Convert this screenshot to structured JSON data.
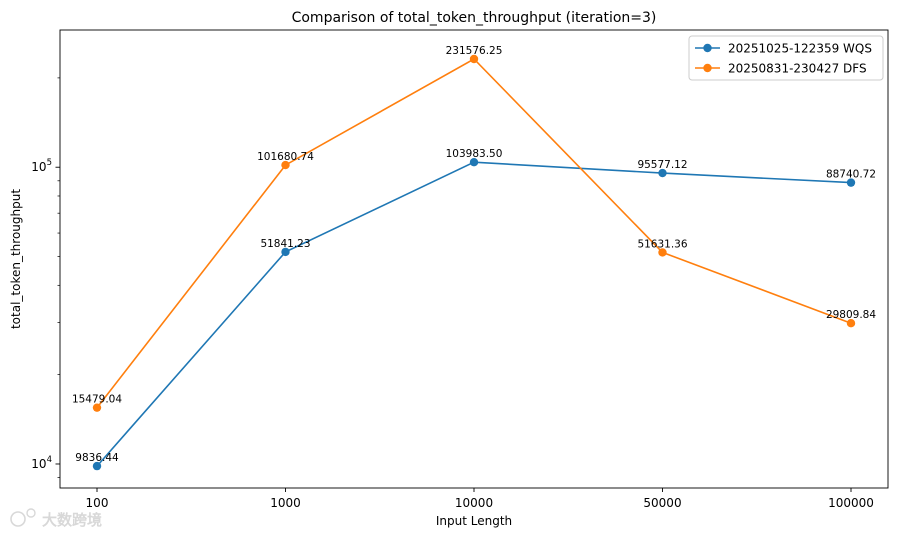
{
  "chart_data": {
    "type": "line",
    "title": "Comparison of total_token_throughput (iteration=3)",
    "xlabel": "Input Length",
    "ylabel": "total_token_throughput",
    "yscale": "log",
    "ylim": [
      8300,
      290000
    ],
    "categories": [
      "100",
      "1000",
      "10000",
      "50000",
      "100000"
    ],
    "y_ticks": [
      {
        "value": 10000,
        "base": "10",
        "exp": "4"
      },
      {
        "value": 100000,
        "base": "10",
        "exp": "5"
      }
    ],
    "grid": false,
    "legend_position": "top-right",
    "series": [
      {
        "name": "20251025-122359 WQS",
        "color": "#1f77b4",
        "values": [
          9836.44,
          51841.23,
          103983.5,
          95577.12,
          88740.72
        ],
        "labels": [
          "9836.44",
          "51841.23",
          "103983.50",
          "95577.12",
          "88740.72"
        ]
      },
      {
        "name": "20250831-230427 DFS",
        "color": "#ff7f0e",
        "values": [
          15479.04,
          101680.74,
          231576.25,
          51631.36,
          29809.84
        ],
        "labels": [
          "15479.04",
          "101680.74",
          "231576.25",
          "51631.36",
          "29809.84"
        ]
      }
    ]
  },
  "watermark": {
    "text": "大数跨境"
  }
}
